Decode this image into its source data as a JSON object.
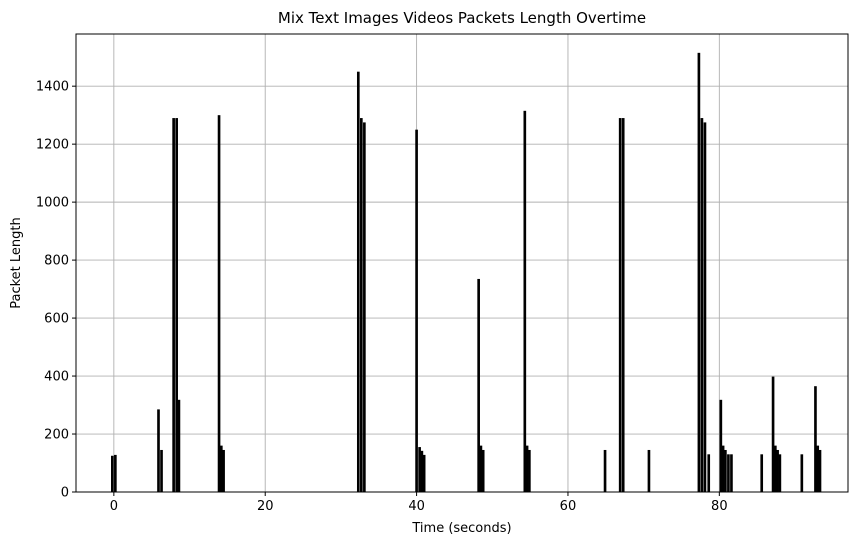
{
  "chart_data": {
    "type": "bar",
    "title": "Mix Text Images Videos Packets Length Overtime",
    "xlabel": "Time (seconds)",
    "ylabel": "Packet Length",
    "xlim": [
      -5,
      97
    ],
    "ylim": [
      0,
      1580
    ],
    "xticks": [
      0,
      20,
      40,
      60,
      80
    ],
    "yticks": [
      0,
      200,
      400,
      600,
      800,
      1000,
      1200,
      1400
    ],
    "grid": true,
    "bar_color": "#000000",
    "bar_width": 0.35,
    "points": [
      {
        "x": -0.2,
        "y": 125
      },
      {
        "x": 0.2,
        "y": 128
      },
      {
        "x": 5.9,
        "y": 285
      },
      {
        "x": 6.3,
        "y": 145
      },
      {
        "x": 7.9,
        "y": 1290
      },
      {
        "x": 8.3,
        "y": 1290
      },
      {
        "x": 8.6,
        "y": 318
      },
      {
        "x": 13.9,
        "y": 1300
      },
      {
        "x": 14.2,
        "y": 160
      },
      {
        "x": 14.5,
        "y": 145
      },
      {
        "x": 32.3,
        "y": 1450
      },
      {
        "x": 32.7,
        "y": 1290
      },
      {
        "x": 33.1,
        "y": 1275
      },
      {
        "x": 40.0,
        "y": 1250
      },
      {
        "x": 40.4,
        "y": 155
      },
      {
        "x": 40.7,
        "y": 142
      },
      {
        "x": 41.0,
        "y": 128
      },
      {
        "x": 48.2,
        "y": 735
      },
      {
        "x": 48.5,
        "y": 160
      },
      {
        "x": 48.8,
        "y": 145
      },
      {
        "x": 54.3,
        "y": 1315
      },
      {
        "x": 54.6,
        "y": 160
      },
      {
        "x": 54.9,
        "y": 145
      },
      {
        "x": 64.9,
        "y": 145
      },
      {
        "x": 66.9,
        "y": 1290
      },
      {
        "x": 67.3,
        "y": 1290
      },
      {
        "x": 70.7,
        "y": 145
      },
      {
        "x": 77.3,
        "y": 1515
      },
      {
        "x": 77.7,
        "y": 1290
      },
      {
        "x": 78.1,
        "y": 1275
      },
      {
        "x": 78.6,
        "y": 130
      },
      {
        "x": 80.2,
        "y": 318
      },
      {
        "x": 80.5,
        "y": 160
      },
      {
        "x": 80.8,
        "y": 145
      },
      {
        "x": 81.2,
        "y": 130
      },
      {
        "x": 81.6,
        "y": 130
      },
      {
        "x": 85.6,
        "y": 130
      },
      {
        "x": 87.1,
        "y": 398
      },
      {
        "x": 87.4,
        "y": 160
      },
      {
        "x": 87.7,
        "y": 145
      },
      {
        "x": 88.0,
        "y": 130
      },
      {
        "x": 90.9,
        "y": 130
      },
      {
        "x": 92.7,
        "y": 365
      },
      {
        "x": 93.0,
        "y": 160
      },
      {
        "x": 93.3,
        "y": 145
      }
    ]
  }
}
